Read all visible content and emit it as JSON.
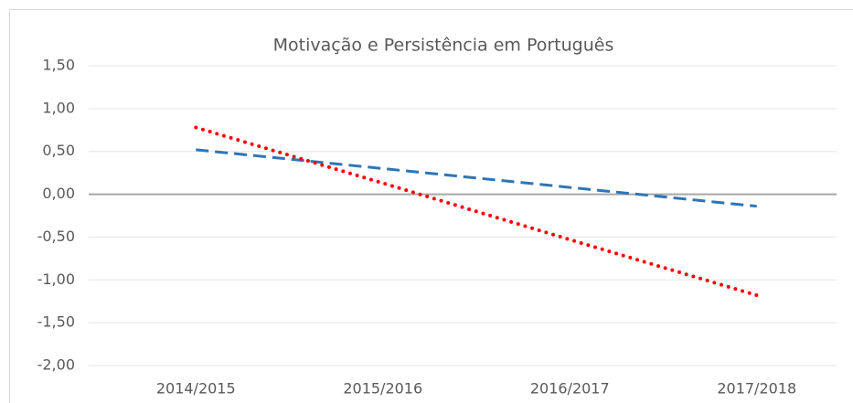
{
  "chart_data": {
    "type": "line",
    "title": "Motivação e Persistência em Português",
    "categories": [
      "2014/2015",
      "2015/2016",
      "2016/2017",
      "2017/2018"
    ],
    "series": [
      {
        "color": "#2e75b6",
        "dash": "dashed",
        "values": [
          0.52,
          0.3,
          0.08,
          -0.14
        ]
      },
      {
        "color": "#ff0000",
        "dash": "dotted",
        "values": [
          0.78,
          0.13,
          -0.53,
          -1.18
        ]
      }
    ],
    "ylim": [
      -2,
      1.5
    ],
    "yticks": [
      {
        "value": -2,
        "label": "-2,00"
      },
      {
        "value": -1.5,
        "label": "-1,50"
      },
      {
        "value": -1,
        "label": "-1,00"
      },
      {
        "value": -0.5,
        "label": "-0,50"
      },
      {
        "value": 0,
        "label": "0,00"
      },
      {
        "value": 0.5,
        "label": "0,50"
      },
      {
        "value": 1,
        "label": "1,00"
      },
      {
        "value": 1.5,
        "label": "1,50"
      }
    ],
    "grid": true
  }
}
